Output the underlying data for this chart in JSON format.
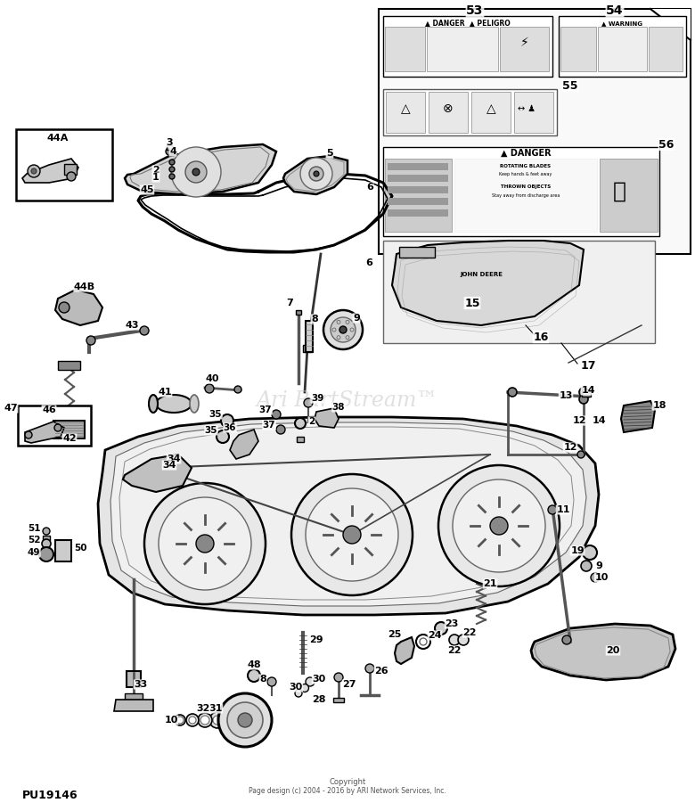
{
  "bg_color": "#ffffff",
  "part_number": "PU19146",
  "copyright_line1": "Copyright",
  "copyright_line2": "Page design (c) 2004 - 2016 by ARI Network Services, Inc.",
  "watermark": "Ari PartStream™",
  "fig_w": 7.8,
  "fig_h": 9.1,
  "dpi": 100
}
